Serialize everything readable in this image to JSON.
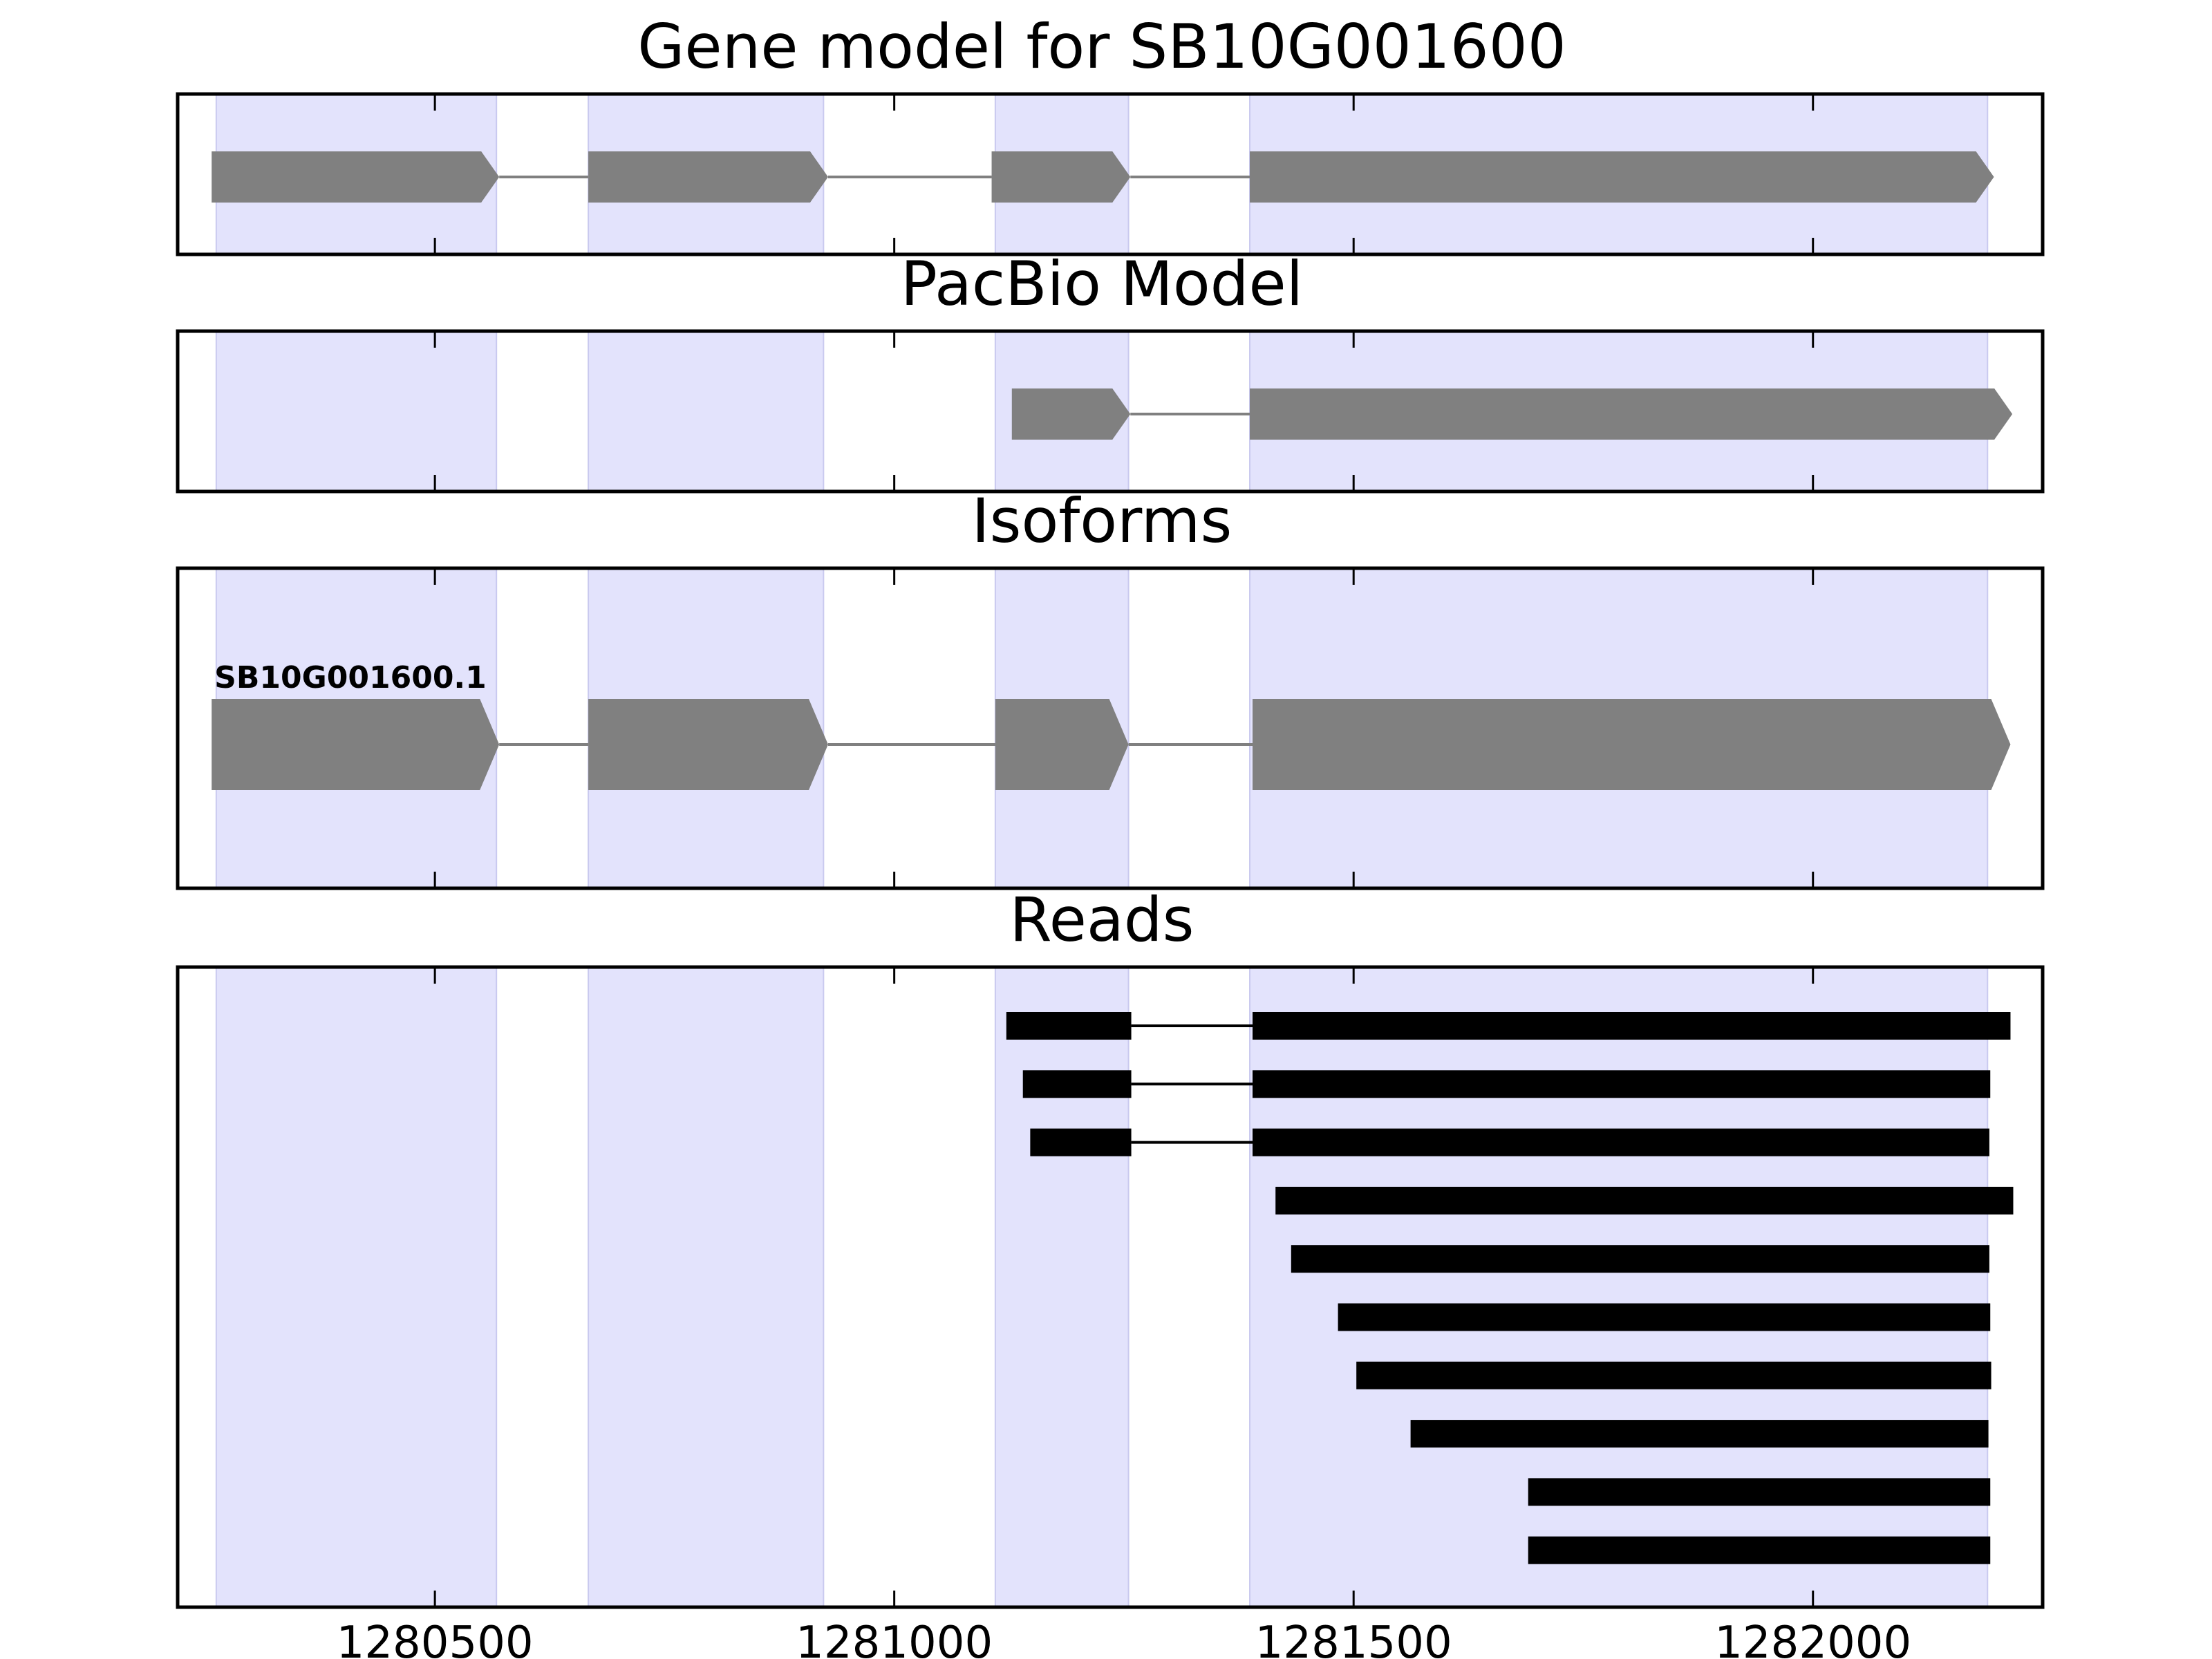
{
  "chart_data": {
    "type": "gene-track",
    "xlim": [
      1280220,
      1282250
    ],
    "x_ticks": [
      {
        "value": 1280500,
        "label": "1280500"
      },
      {
        "value": 1281000,
        "label": "1281000"
      },
      {
        "value": 1281500,
        "label": "1281500"
      },
      {
        "value": 1282000,
        "label": "1282000"
      }
    ],
    "highlight_regions": [
      [
        1280262,
        1280567
      ],
      [
        1280667,
        1280923
      ],
      [
        1281110,
        1281255
      ],
      [
        1281387,
        1282190
      ]
    ],
    "colors": {
      "highlight": "#e3e3fc",
      "highlight_edge": "#c9c9ef",
      "gene": "#808080",
      "read": "#000000"
    },
    "panels": [
      {
        "title": "Gene model for SB10G001600",
        "kind": "gene",
        "models": [
          {
            "label": "",
            "exons": [
              [
                1280257,
                1280570
              ],
              [
                1280667,
                1280928
              ],
              [
                1281106,
                1281257
              ],
              [
                1281387,
                1282197
              ]
            ]
          }
        ]
      },
      {
        "title": "PacBio Model",
        "kind": "gene",
        "models": [
          {
            "label": "",
            "exons": [
              [
                1281128,
                1281257
              ],
              [
                1281387,
                1282217
              ]
            ]
          }
        ]
      },
      {
        "title": "Isoforms",
        "kind": "gene",
        "models": [
          {
            "label": "SB10G001600.1",
            "exons": [
              [
                1280257,
                1280570
              ],
              [
                1280667,
                1280928
              ],
              [
                1281110,
                1281255
              ],
              [
                1281390,
                1282215
              ]
            ]
          }
        ]
      },
      {
        "title": "Reads",
        "kind": "reads",
        "reads": [
          [
            [
              1281122,
              1281258
            ],
            [
              1281390,
              1282215
            ]
          ],
          [
            [
              1281140,
              1281258
            ],
            [
              1281390,
              1282193
            ]
          ],
          [
            [
              1281148,
              1281258
            ],
            [
              1281390,
              1282192
            ]
          ],
          [
            [
              1281415,
              1282218
            ]
          ],
          [
            [
              1281432,
              1282192
            ]
          ],
          [
            [
              1281483,
              1282193
            ]
          ],
          [
            [
              1281503,
              1282194
            ]
          ],
          [
            [
              1281562,
              1282191
            ]
          ],
          [
            [
              1281690,
              1282193
            ]
          ],
          [
            [
              1281690,
              1282193
            ]
          ]
        ]
      }
    ]
  }
}
